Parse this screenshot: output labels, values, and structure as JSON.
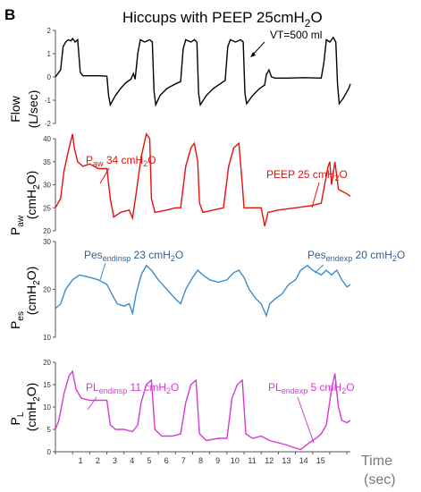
{
  "figure": {
    "panel_letter": "B",
    "title_main": "Hiccups with PEEP 25cmH",
    "title_sub": "2",
    "title_end": "O",
    "time_label": "Time",
    "time_unit": "(sec)"
  },
  "colors": {
    "flow": "#000000",
    "paw": "#e3120b",
    "pes": "#3a8ccf",
    "pl": "#d63bd0",
    "pes_text": "#2f5f9c",
    "axis": "#555555",
    "gray_text": "#7a7a7a"
  },
  "chart_data": [
    {
      "type": "line",
      "name": "flow",
      "ylabel_top": "Flow",
      "ylabel_bottom": "(L/sec)",
      "ylim": [
        -2,
        2
      ],
      "yticks": [
        -2,
        -1,
        0,
        1,
        2
      ],
      "xlim": [
        0,
        17.2
      ],
      "annotation": "VT=500 ml",
      "points": [
        [
          0,
          0
        ],
        [
          0.3,
          0.3
        ],
        [
          0.45,
          1.3
        ],
        [
          0.6,
          1.5
        ],
        [
          0.75,
          1.6
        ],
        [
          0.9,
          1.55
        ],
        [
          1.0,
          1.65
        ],
        [
          1.15,
          1.5
        ],
        [
          1.3,
          1.6
        ],
        [
          1.45,
          0.2
        ],
        [
          1.6,
          0.05
        ],
        [
          2,
          0.05
        ],
        [
          2.5,
          0.05
        ],
        [
          3.0,
          0.03
        ],
        [
          3.1,
          -0.8
        ],
        [
          3.2,
          -1.2
        ],
        [
          3.5,
          -0.8
        ],
        [
          3.8,
          -0.5
        ],
        [
          4.1,
          -0.25
        ],
        [
          4.4,
          -0.1
        ],
        [
          4.55,
          0.15
        ],
        [
          4.65,
          -0.1
        ],
        [
          4.8,
          1.0
        ],
        [
          4.95,
          1.6
        ],
        [
          5.2,
          1.5
        ],
        [
          5.5,
          1.6
        ],
        [
          5.65,
          1.5
        ],
        [
          5.75,
          -0.6
        ],
        [
          5.85,
          -1.2
        ],
        [
          6.1,
          -0.8
        ],
        [
          6.5,
          -0.5
        ],
        [
          7.0,
          -0.3
        ],
        [
          7.3,
          -0.2
        ],
        [
          7.45,
          1.2
        ],
        [
          7.6,
          1.6
        ],
        [
          7.9,
          1.5
        ],
        [
          8.1,
          1.6
        ],
        [
          8.25,
          1.5
        ],
        [
          8.35,
          -0.7
        ],
        [
          8.45,
          -1.2
        ],
        [
          8.8,
          -0.8
        ],
        [
          9.2,
          -0.5
        ],
        [
          9.6,
          -0.3
        ],
        [
          9.9,
          -0.15
        ],
        [
          10.05,
          1.3
        ],
        [
          10.2,
          1.6
        ],
        [
          10.5,
          1.5
        ],
        [
          10.8,
          1.6
        ],
        [
          10.95,
          1.5
        ],
        [
          11.05,
          -0.7
        ],
        [
          11.15,
          -1.15
        ],
        [
          11.5,
          -0.8
        ],
        [
          11.9,
          -0.5
        ],
        [
          12.2,
          -0.35
        ],
        [
          12.3,
          0.1
        ],
        [
          12.45,
          0.3
        ],
        [
          12.6,
          0.0
        ],
        [
          12.8,
          -0.05
        ],
        [
          13.5,
          -0.05
        ],
        [
          14.5,
          -0.03
        ],
        [
          15.5,
          -0.05
        ],
        [
          15.65,
          0.6
        ],
        [
          15.8,
          1.6
        ],
        [
          16.0,
          1.5
        ],
        [
          16.2,
          1.7
        ],
        [
          16.35,
          1.5
        ],
        [
          16.45,
          -0.3
        ],
        [
          16.55,
          -1.15
        ],
        [
          16.8,
          -0.9
        ],
        [
          17.1,
          -0.5
        ],
        [
          17.2,
          -0.3
        ]
      ]
    },
    {
      "type": "line",
      "name": "paw",
      "ylabel_top": "P",
      "ylabel_sub": "aw",
      "ylabel_bottom": "(cmH",
      "ylabel_bottom_sub": "2",
      "ylabel_bottom_end": "O)",
      "ylim": [
        20,
        40
      ],
      "yticks": [
        20,
        25,
        30,
        35,
        40
      ],
      "xlim": [
        0,
        17.2
      ],
      "annotations": [
        {
          "main": "P",
          "sub": "aw",
          "rest": " 34 cmH",
          "sub2": "2",
          "end": "O"
        },
        {
          "main": "PEEP 25 cmH",
          "sub": "2",
          "end": "O"
        }
      ],
      "points": [
        [
          0,
          25
        ],
        [
          0.3,
          27
        ],
        [
          0.5,
          33
        ],
        [
          0.8,
          38
        ],
        [
          1.0,
          41
        ],
        [
          1.1,
          38
        ],
        [
          1.3,
          35
        ],
        [
          1.6,
          34
        ],
        [
          2.0,
          34.5
        ],
        [
          2.5,
          33.5
        ],
        [
          3.0,
          33.5
        ],
        [
          3.2,
          27
        ],
        [
          3.4,
          23
        ],
        [
          3.8,
          24
        ],
        [
          4.3,
          24.5
        ],
        [
          4.5,
          22.8
        ],
        [
          4.7,
          28
        ],
        [
          5.0,
          36
        ],
        [
          5.3,
          41
        ],
        [
          5.5,
          40
        ],
        [
          5.6,
          27
        ],
        [
          5.8,
          24
        ],
        [
          6.5,
          24.5
        ],
        [
          7.0,
          25
        ],
        [
          7.3,
          25
        ],
        [
          7.6,
          34
        ],
        [
          7.9,
          38
        ],
        [
          8.1,
          39
        ],
        [
          8.3,
          35
        ],
        [
          8.4,
          26
        ],
        [
          8.6,
          24
        ],
        [
          9.2,
          24.5
        ],
        [
          9.8,
          25
        ],
        [
          10.1,
          34
        ],
        [
          10.4,
          38
        ],
        [
          10.7,
          39
        ],
        [
          10.9,
          30
        ],
        [
          11.0,
          25
        ],
        [
          11.5,
          25
        ],
        [
          12.0,
          25
        ],
        [
          12.2,
          21
        ],
        [
          12.4,
          24
        ],
        [
          13.0,
          24.5
        ],
        [
          14.0,
          25
        ],
        [
          15.0,
          25.5
        ],
        [
          15.5,
          26
        ],
        [
          15.7,
          30
        ],
        [
          15.9,
          34
        ],
        [
          16.0,
          35
        ],
        [
          16.1,
          30
        ],
        [
          16.3,
          35
        ],
        [
          16.5,
          29
        ],
        [
          17.0,
          28
        ],
        [
          17.2,
          27.5
        ]
      ]
    },
    {
      "type": "line",
      "name": "pes",
      "ylabel_top": "P",
      "ylabel_sub": "es",
      "ylabel_bottom": "(cmH",
      "ylabel_bottom_sub": "2",
      "ylabel_bottom_end": "O)",
      "ylim": [
        10,
        30
      ],
      "yticks": [
        10,
        20,
        30
      ],
      "xlim": [
        0,
        17.2
      ],
      "annotations": [
        {
          "main": "Pes",
          "sub": "endinsp",
          "rest": " 23 cmH",
          "sub2": "2",
          "end": "O"
        },
        {
          "main": "Pes",
          "sub": "endexp",
          "rest": " 20 cmH",
          "sub2": "2",
          "end": "O"
        }
      ],
      "points": [
        [
          0,
          16
        ],
        [
          0.3,
          17
        ],
        [
          0.6,
          20
        ],
        [
          1.0,
          22
        ],
        [
          1.4,
          23
        ],
        [
          2.0,
          22.5
        ],
        [
          2.5,
          22
        ],
        [
          3.0,
          21
        ],
        [
          3.3,
          19
        ],
        [
          3.6,
          17
        ],
        [
          4.0,
          16.5
        ],
        [
          4.3,
          17
        ],
        [
          4.5,
          15
        ],
        [
          4.7,
          19
        ],
        [
          5.0,
          23
        ],
        [
          5.3,
          25
        ],
        [
          5.6,
          24
        ],
        [
          6.0,
          22
        ],
        [
          6.5,
          20
        ],
        [
          7.0,
          18
        ],
        [
          7.3,
          17
        ],
        [
          7.6,
          20
        ],
        [
          8.0,
          22.5
        ],
        [
          8.3,
          24
        ],
        [
          8.6,
          23
        ],
        [
          9.0,
          22
        ],
        [
          9.5,
          21.5
        ],
        [
          10.0,
          22
        ],
        [
          10.4,
          23.5
        ],
        [
          10.7,
          24
        ],
        [
          11.0,
          22.5
        ],
        [
          11.3,
          20
        ],
        [
          11.7,
          18
        ],
        [
          12.0,
          17
        ],
        [
          12.3,
          14.5
        ],
        [
          12.5,
          17
        ],
        [
          12.8,
          18
        ],
        [
          13.2,
          19
        ],
        [
          13.6,
          21
        ],
        [
          14.0,
          22
        ],
        [
          14.3,
          24
        ],
        [
          14.7,
          25
        ],
        [
          15.0,
          24
        ],
        [
          15.5,
          23
        ],
        [
          15.8,
          24
        ],
        [
          16.1,
          23
        ],
        [
          16.4,
          24
        ],
        [
          16.7,
          22
        ],
        [
          17.0,
          20.5
        ],
        [
          17.2,
          21
        ]
      ]
    },
    {
      "type": "line",
      "name": "pl",
      "ylabel_top": "P",
      "ylabel_sub": "L",
      "ylabel_bottom": "(cmH",
      "ylabel_bottom_sub": "2",
      "ylabel_bottom_end": "O)",
      "ylim": [
        0,
        20
      ],
      "yticks": [
        0,
        5,
        10,
        15,
        20
      ],
      "xlim": [
        0,
        17.2
      ],
      "xticks": [
        1,
        2,
        3,
        4,
        5,
        6,
        7,
        8,
        9,
        10,
        11,
        12,
        13,
        14,
        15
      ],
      "annotations": [
        {
          "main": "PL",
          "sub": "endinsp",
          "rest": " 11 cmH",
          "sub2": "2",
          "end": "O"
        },
        {
          "main": "PL",
          "sub": "endexp",
          "rest": " 5 cmH",
          "sub2": "2",
          "end": "O"
        }
      ],
      "points": [
        [
          0,
          5
        ],
        [
          0.2,
          7
        ],
        [
          0.5,
          13
        ],
        [
          0.8,
          17
        ],
        [
          1.0,
          18
        ],
        [
          1.2,
          14
        ],
        [
          1.5,
          12
        ],
        [
          2.0,
          11.5
        ],
        [
          2.5,
          11.5
        ],
        [
          3.0,
          11.5
        ],
        [
          3.2,
          6
        ],
        [
          3.5,
          5
        ],
        [
          4.0,
          5
        ],
        [
          4.5,
          4.5
        ],
        [
          4.8,
          6
        ],
        [
          5.0,
          11
        ],
        [
          5.3,
          15
        ],
        [
          5.6,
          16
        ],
        [
          5.8,
          5
        ],
        [
          6.2,
          3.5
        ],
        [
          6.8,
          3.5
        ],
        [
          7.3,
          4
        ],
        [
          7.6,
          11
        ],
        [
          7.9,
          15
        ],
        [
          8.2,
          16
        ],
        [
          8.4,
          4
        ],
        [
          8.8,
          2.5
        ],
        [
          9.5,
          3
        ],
        [
          10.0,
          3
        ],
        [
          10.3,
          12
        ],
        [
          10.6,
          15
        ],
        [
          10.9,
          16
        ],
        [
          11.1,
          4
        ],
        [
          11.5,
          3
        ],
        [
          12.0,
          3.5
        ],
        [
          12.5,
          2.5
        ],
        [
          13.0,
          2
        ],
        [
          13.5,
          1.5
        ],
        [
          14.0,
          0.8
        ],
        [
          14.3,
          0.5
        ],
        [
          14.8,
          2
        ],
        [
          15.2,
          3
        ],
        [
          15.5,
          4
        ],
        [
          15.8,
          6
        ],
        [
          16.1,
          14
        ],
        [
          16.3,
          17.5
        ],
        [
          16.5,
          10
        ],
        [
          16.7,
          7
        ],
        [
          17.0,
          6.5
        ],
        [
          17.2,
          7
        ]
      ]
    }
  ]
}
